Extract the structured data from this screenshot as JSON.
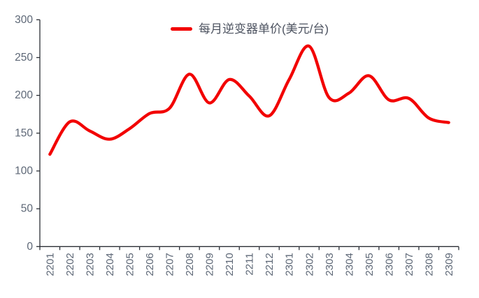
{
  "legend": {
    "label": "每月逆变器单价(美元/台)"
  },
  "colors": {
    "series_line": "#F20000",
    "axis_line": "#2B2F36",
    "tick_label": "#5D6776",
    "legend_text": "#4D5360",
    "background": "#FFFFFF"
  },
  "chart_data": {
    "type": "line",
    "title": "",
    "xlabel": "",
    "ylabel": "",
    "smooth": true,
    "grid": false,
    "legend_position": "top-center",
    "ylim": [
      0,
      300
    ],
    "y_ticks": [
      0,
      50,
      100,
      150,
      200,
      250,
      300
    ],
    "categories": [
      "2201",
      "2202",
      "2203",
      "2204",
      "2205",
      "2206",
      "2207",
      "2208",
      "2209",
      "2210",
      "2211",
      "2212",
      "2301",
      "2302",
      "2303",
      "2304",
      "2305",
      "2306",
      "2307",
      "2308",
      "2309"
    ],
    "series": [
      {
        "name": "每月逆变器单价(美元/台)",
        "values": [
          122,
          165,
          153,
          142,
          156,
          176,
          183,
          228,
          190,
          221,
          199,
          173,
          221,
          265,
          197,
          203,
          226,
          194,
          196,
          170,
          164
        ]
      }
    ]
  }
}
